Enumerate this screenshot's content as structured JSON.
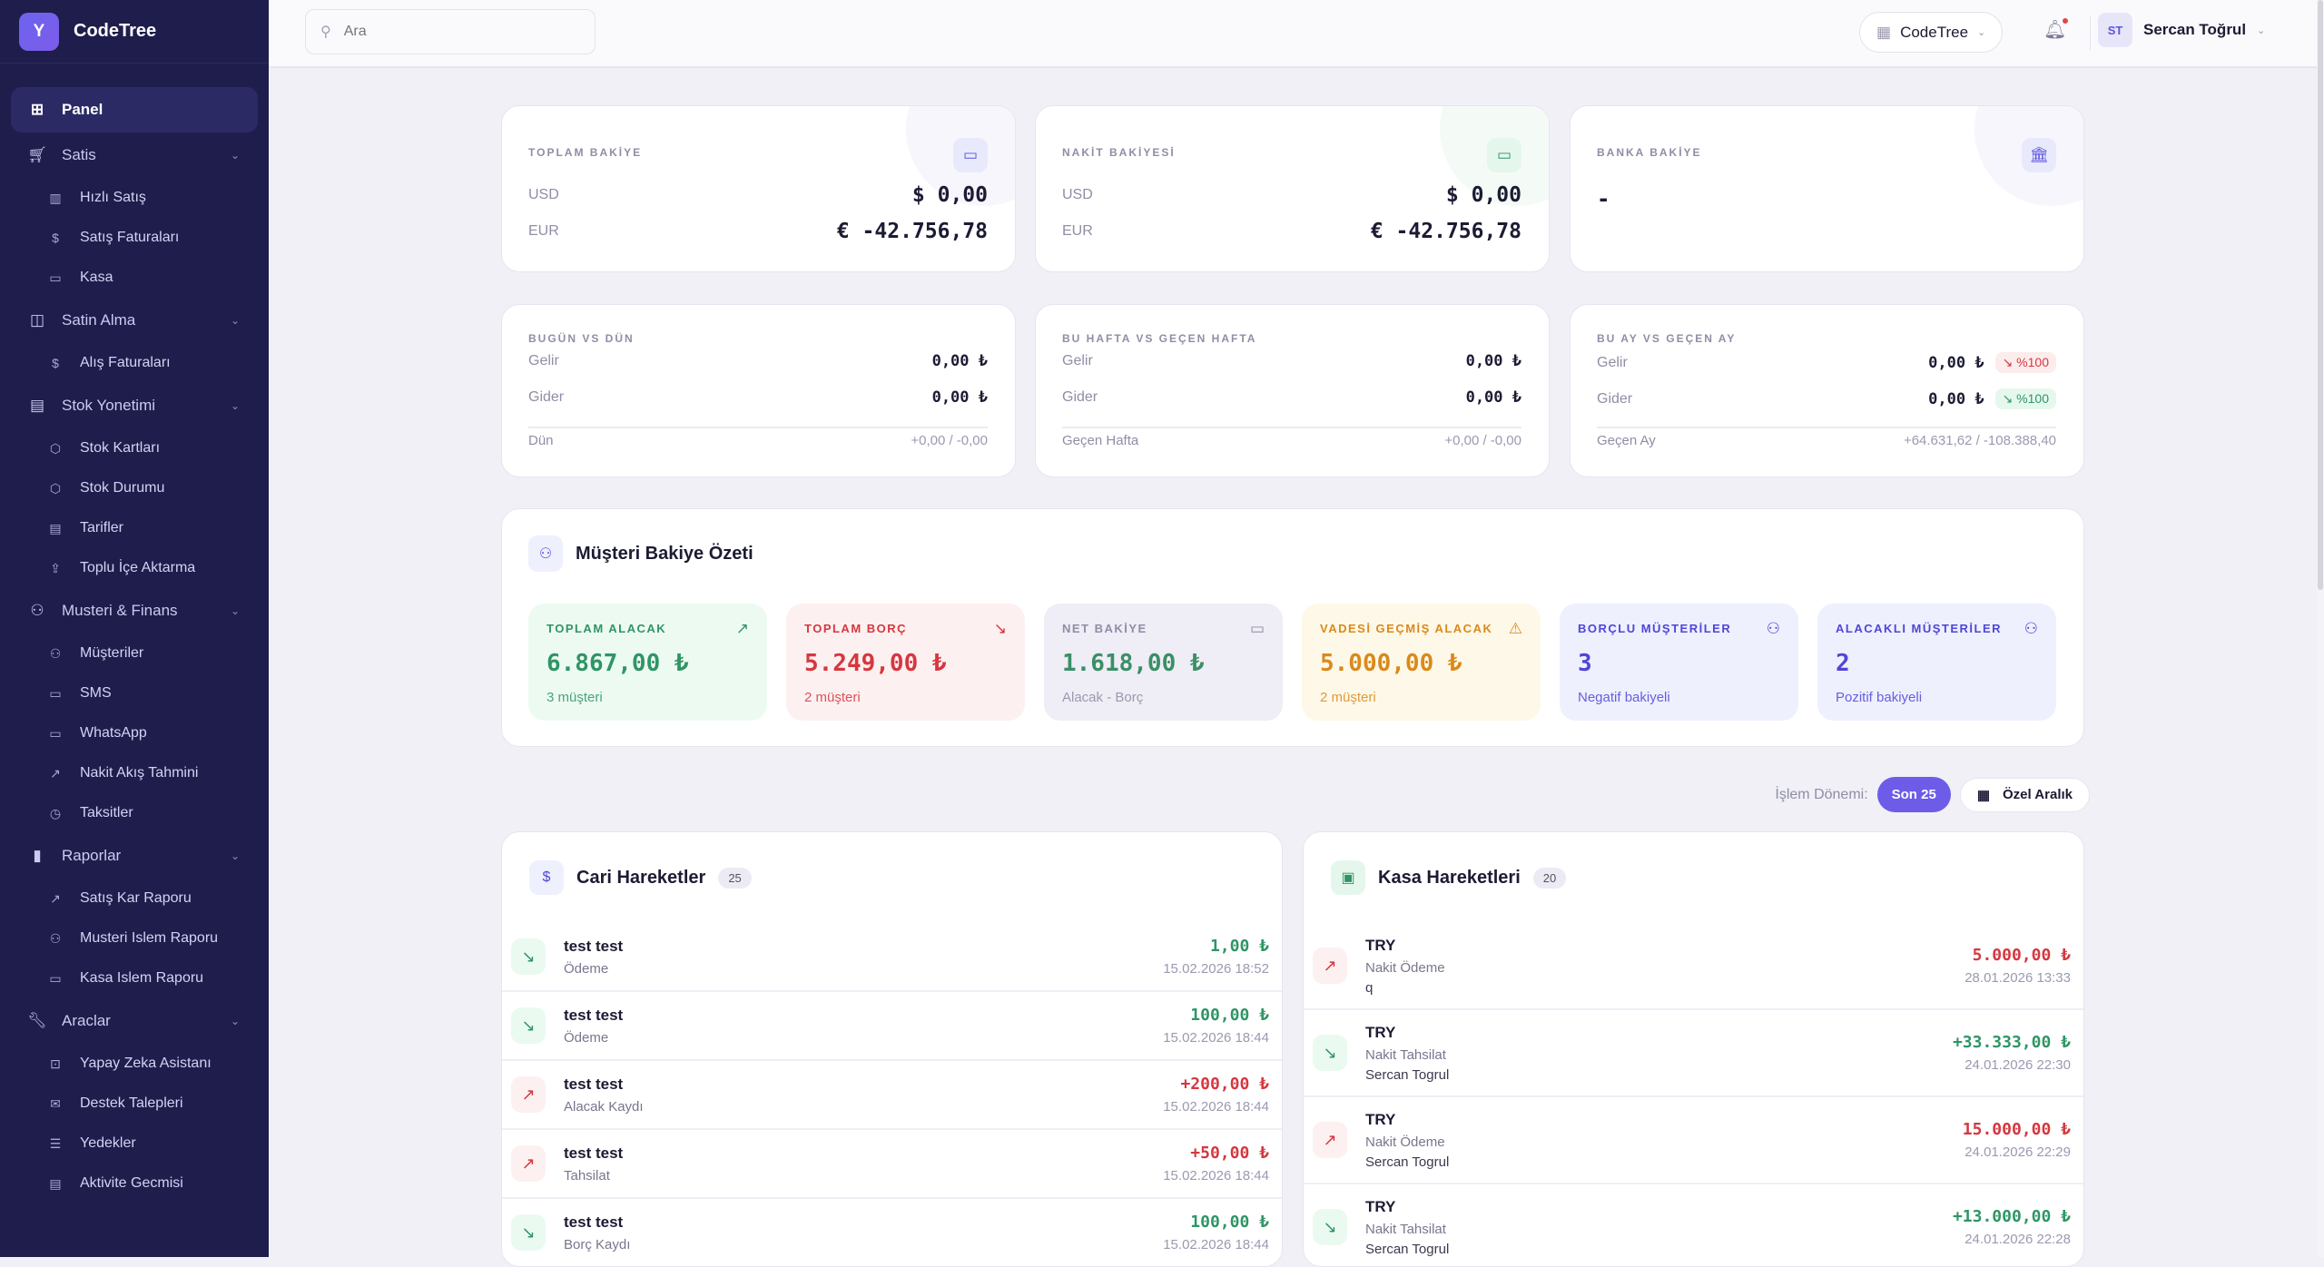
{
  "brand": {
    "logo_letter": "Y",
    "name": "CodeTree"
  },
  "sidebar": [
    {
      "type": "item",
      "label": "Panel",
      "icon": "⊞",
      "name": "dashboard-icon",
      "active": true
    },
    {
      "type": "group",
      "label": "Satis",
      "icon": "🛒︎",
      "name": "cart-icon"
    },
    {
      "type": "sub",
      "label": "Hızlı Satış",
      "icon": "▥",
      "name": "barcode-icon"
    },
    {
      "type": "sub",
      "label": "Satış Faturaları",
      "icon": "$",
      "name": "invoice-icon"
    },
    {
      "type": "sub",
      "label": "Kasa",
      "icon": "▭",
      "name": "wallet-icon"
    },
    {
      "type": "group",
      "label": "Satin Alma",
      "icon": "◫",
      "name": "shopping-bag-icon"
    },
    {
      "type": "sub",
      "label": "Alış Faturaları",
      "icon": "$",
      "name": "invoice-icon"
    },
    {
      "type": "group",
      "label": "Stok Yonetimi",
      "icon": "▤",
      "name": "warehouse-icon"
    },
    {
      "type": "sub",
      "label": "Stok Kartları",
      "icon": "⬡",
      "name": "box-icon"
    },
    {
      "type": "sub",
      "label": "Stok Durumu",
      "icon": "⬡",
      "name": "box-icon"
    },
    {
      "type": "sub",
      "label": "Tarifler",
      "icon": "▤",
      "name": "document-icon"
    },
    {
      "type": "sub",
      "label": "Toplu İçe Aktarma",
      "icon": "⇪",
      "name": "upload-icon"
    },
    {
      "type": "group",
      "label": "Musteri & Finans",
      "icon": "⚇",
      "name": "users-icon"
    },
    {
      "type": "sub",
      "label": "Müşteriler",
      "icon": "⚇",
      "name": "users-icon"
    },
    {
      "type": "sub",
      "label": "SMS",
      "icon": "▭",
      "name": "message-icon"
    },
    {
      "type": "sub",
      "label": "WhatsApp",
      "icon": "▭",
      "name": "message-icon"
    },
    {
      "type": "sub",
      "label": "Nakit Akış Tahmini",
      "icon": "↗",
      "name": "trending-up-icon"
    },
    {
      "type": "sub",
      "label": "Taksitler",
      "icon": "◷",
      "name": "calendar-clock-icon"
    },
    {
      "type": "group",
      "label": "Raporlar",
      "icon": "▮",
      "name": "bar-chart-icon"
    },
    {
      "type": "sub",
      "label": "Satış Kar Raporu",
      "icon": "↗",
      "name": "trending-up-icon"
    },
    {
      "type": "sub",
      "label": "Musteri Islem Raporu",
      "icon": "⚇",
      "name": "users-icon"
    },
    {
      "type": "sub",
      "label": "Kasa Islem Raporu",
      "icon": "▭",
      "name": "wallet-icon"
    },
    {
      "type": "group",
      "label": "Araclar",
      "icon": "🔧︎",
      "name": "wrench-icon"
    },
    {
      "type": "sub",
      "label": "Yapay Zeka Asistanı",
      "icon": "⊡",
      "name": "bot-icon"
    },
    {
      "type": "sub",
      "label": "Destek Talepleri",
      "icon": "✉",
      "name": "ticket-icon"
    },
    {
      "type": "sub",
      "label": "Yedekler",
      "icon": "☰",
      "name": "database-icon"
    },
    {
      "type": "sub",
      "label": "Aktivite Gecmisi",
      "icon": "▤",
      "name": "scroll-icon"
    }
  ],
  "header": {
    "search_placeholder": "Ara",
    "company": "CodeTree",
    "user_initials": "ST",
    "user_name": "Sercan Toğrul"
  },
  "balances": [
    {
      "label": "TOPLAM BAKİYE",
      "rows": [
        {
          "k": "USD",
          "v": "$ 0,00"
        },
        {
          "k": "EUR",
          "v": "€ -42.756,78"
        }
      ]
    },
    {
      "label": "NAKİT BAKİYESİ",
      "rows": [
        {
          "k": "USD",
          "v": "$ 0,00"
        },
        {
          "k": "EUR",
          "v": "€ -42.756,78"
        }
      ]
    },
    {
      "label": "BANKA BAKİYE",
      "value": "-"
    }
  ],
  "comparisons": [
    {
      "label": "BUGÜN VS DÜN",
      "income_label": "Gelir",
      "income": "0,00 ₺",
      "expense_label": "Gider",
      "expense": "0,00 ₺",
      "prev_label": "Dün",
      "prev": "+0,00 / -0,00"
    },
    {
      "label": "BU HAFTA VS GEÇEN HAFTA",
      "income_label": "Gelir",
      "income": "0,00 ₺",
      "expense_label": "Gider",
      "expense": "0,00 ₺",
      "prev_label": "Geçen Hafta",
      "prev": "+0,00 / -0,00"
    },
    {
      "label": "BU AY VS GEÇEN AY",
      "income_label": "Gelir",
      "income": "0,00 ₺",
      "income_change": "↘ %100",
      "expense_label": "Gider",
      "expense": "0,00 ₺",
      "expense_change": "↘ %100",
      "prev_label": "Geçen Ay",
      "prev": "+64.631,62 / -108.388,40"
    }
  ],
  "customer_summary": {
    "title": "Müşteri Bakiye Özeti",
    "cards": [
      {
        "label": "TOPLAM ALACAK",
        "value": "6.867,00 ₺",
        "sub": "3 müşteri",
        "color": "#2f9565",
        "bg": "#edfaf2",
        "icon": "↗"
      },
      {
        "label": "TOPLAM BORÇ",
        "value": "5.249,00 ₺",
        "sub": "2 müşteri",
        "color": "#d6373f",
        "bg": "#fdf0f0",
        "icon": "↘"
      },
      {
        "label": "NET BAKİYE",
        "value": "1.618,00 ₺",
        "sub": "Alacak - Borç",
        "color": "#2f9565",
        "bg": "#efedf5",
        "icon": "▭"
      },
      {
        "label": "VADESİ GEÇMİŞ ALACAK",
        "value": "5.000,00 ₺",
        "sub": "2 müşteri",
        "color": "#d98a1c",
        "bg": "#fef8e8",
        "icon": "⚠"
      },
      {
        "label": "BORÇLU MÜŞTERİLER",
        "value": "3",
        "sub": "Negatif bakiyeli",
        "color": "#4f46d8",
        "bg": "#eef0fd",
        "icon": "⚇"
      },
      {
        "label": "ALACAKLI MÜŞTERİLER",
        "value": "2",
        "sub": "Pozitif bakiyeli",
        "color": "#4f46d8",
        "bg": "#eef0fd",
        "icon": "⚇"
      }
    ]
  },
  "period": {
    "label": "İşlem Dönemi:",
    "active": "Son 25",
    "custom": "Özel Aralık"
  },
  "cari": {
    "title": "Cari Hareketler",
    "count": "25",
    "rows": [
      {
        "name": "test test",
        "type": "Ödeme",
        "amount": "1,00 ₺",
        "date": "15.02.2026 18:52",
        "dir": "in"
      },
      {
        "name": "test test",
        "type": "Ödeme",
        "amount": "100,00 ₺",
        "date": "15.02.2026 18:44",
        "dir": "in"
      },
      {
        "name": "test test",
        "type": "Alacak Kaydı",
        "amount": "+200,00 ₺",
        "date": "15.02.2026 18:44",
        "dir": "out"
      },
      {
        "name": "test test",
        "type": "Tahsilat",
        "amount": "+50,00 ₺",
        "date": "15.02.2026 18:44",
        "dir": "out"
      },
      {
        "name": "test test",
        "type": "Borç Kaydı",
        "amount": "100,00 ₺",
        "date": "15.02.2026 18:44",
        "dir": "in"
      }
    ]
  },
  "kasa": {
    "title": "Kasa Hareketleri",
    "count": "20",
    "rows": [
      {
        "name": "TRY",
        "type": "Nakit Ödeme",
        "note": "q",
        "amount": "5.000,00 ₺",
        "date": "28.01.2026 13:33",
        "dir": "out"
      },
      {
        "name": "TRY",
        "type": "Nakit Tahsilat",
        "note": "Sercan Togrul",
        "amount": "+33.333,00 ₺",
        "date": "24.01.2026 22:30",
        "dir": "in"
      },
      {
        "name": "TRY",
        "type": "Nakit Ödeme",
        "note": "Sercan Togrul",
        "amount": "15.000,00 ₺",
        "date": "24.01.2026 22:29",
        "dir": "out"
      },
      {
        "name": "TRY",
        "type": "Nakit Tahsilat",
        "note": "Sercan Togrul",
        "amount": "+13.000,00 ₺",
        "date": "24.01.2026 22:28",
        "dir": "in"
      }
    ]
  }
}
